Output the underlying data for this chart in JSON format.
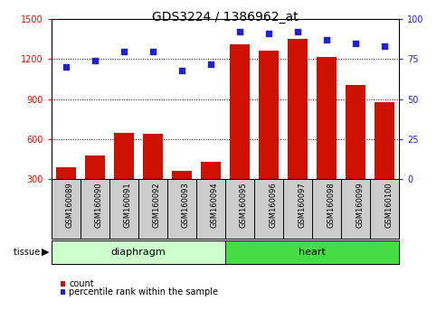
{
  "title": "GDS3224 / 1386962_at",
  "categories": [
    "GSM160089",
    "GSM160090",
    "GSM160091",
    "GSM160092",
    "GSM160093",
    "GSM160094",
    "GSM160095",
    "GSM160096",
    "GSM160097",
    "GSM160098",
    "GSM160099",
    "GSM160100"
  ],
  "counts": [
    390,
    480,
    650,
    640,
    360,
    430,
    1310,
    1265,
    1350,
    1220,
    1010,
    880
  ],
  "percentile": [
    70,
    74,
    80,
    80,
    68,
    72,
    92,
    91,
    92,
    87,
    85,
    83
  ],
  "tissue_groups": [
    {
      "label": "diaphragm",
      "start": 0,
      "end": 5,
      "color": "#ccffcc"
    },
    {
      "label": "heart",
      "start": 6,
      "end": 11,
      "color": "#44dd44"
    }
  ],
  "ylim_left": [
    300,
    1500
  ],
  "ylim_right": [
    0,
    100
  ],
  "yticks_left": [
    300,
    600,
    900,
    1200,
    1500
  ],
  "yticks_right": [
    0,
    25,
    50,
    75,
    100
  ],
  "bar_color": "#cc1100",
  "scatter_color": "#2222cc",
  "title_fontsize": 10,
  "xlabel_fontsize": 6,
  "tissue_fontsize": 8,
  "legend_fontsize": 7,
  "label_area_color": "#cccccc",
  "legend_items": [
    "count",
    "percentile rank within the sample"
  ]
}
